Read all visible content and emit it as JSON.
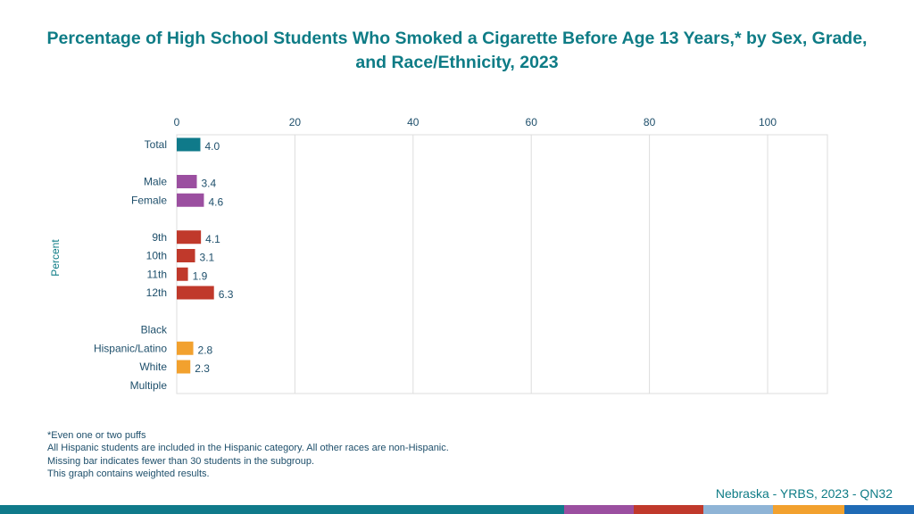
{
  "title": "Percentage of High School Students Who Smoked a Cigarette Before Age 13 Years,* by Sex, Grade, and Race/Ethnicity, 2023",
  "footnotes": [
    "*Even one or two puffs",
    "All Hispanic students are included in the Hispanic category.  All other races are non-Hispanic.",
    "Missing bar indicates fewer than 30 students in the subgroup.",
    "This graph contains weighted results."
  ],
  "source": "Nebraska - YRBS, 2023 - QN32",
  "colors": {
    "title": "#0e7c86",
    "total": "#0f7a8a",
    "sex": "#9b4fa0",
    "grade": "#c0392b",
    "race": "#f2a12e",
    "text": "#1e4f6b",
    "grid": "#dddddd"
  },
  "bottom_band_colors": [
    "#0f7a8a",
    "#9b4fa0",
    "#c0392b",
    "#8fb4d6",
    "#f2a12e",
    "#1f6bb5"
  ],
  "chart_data": {
    "type": "bar",
    "orientation": "horizontal",
    "title": "Percentage of High School Students Who Smoked a Cigarette Before Age 13 Years,* by Sex, Grade, and Race/Ethnicity, 2023",
    "xlabel": "",
    "ylabel": "Percent",
    "xlim": [
      0,
      110
    ],
    "xticks": [
      0,
      20,
      40,
      60,
      80,
      100
    ],
    "grid": true,
    "groups": [
      {
        "group": "total",
        "categories": [
          "Total"
        ],
        "values": [
          4.0
        ],
        "labels": [
          "4.0"
        ]
      },
      {
        "group": "sex",
        "categories": [
          "Male",
          "Female"
        ],
        "values": [
          3.4,
          4.6
        ],
        "labels": [
          "3.4",
          "4.6"
        ]
      },
      {
        "group": "grade",
        "categories": [
          "9th",
          "10th",
          "11th",
          "12th"
        ],
        "values": [
          4.1,
          3.1,
          1.9,
          6.3
        ],
        "labels": [
          "4.1",
          "3.1",
          "1.9",
          "6.3"
        ]
      },
      {
        "group": "race",
        "categories": [
          "Black",
          "Hispanic/Latino",
          "White",
          "Multiple"
        ],
        "values": [
          null,
          2.8,
          2.3,
          null
        ],
        "labels": [
          "",
          "2.8",
          "2.3",
          ""
        ]
      }
    ]
  }
}
